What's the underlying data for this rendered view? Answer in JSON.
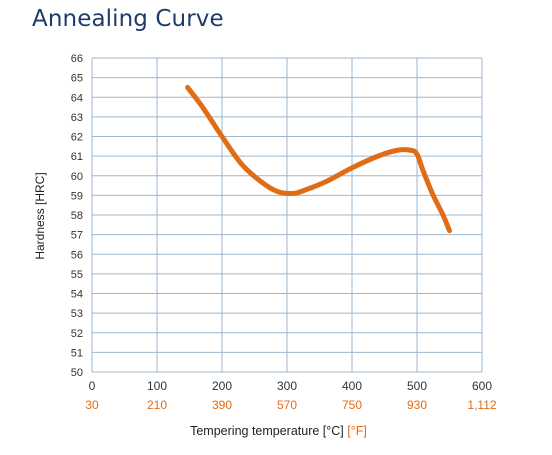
{
  "title": "Annealing Curve",
  "chart_data": {
    "type": "line",
    "title": "Annealing Curve",
    "ylabel": "Hardness [HRC]",
    "xlabel_c": "Tempering temperature [°C]",
    "xlabel_f": "[°F]",
    "xlim": [
      0,
      600
    ],
    "ylim": [
      50,
      66
    ],
    "x_ticks": [
      0,
      100,
      200,
      300,
      400,
      500,
      600
    ],
    "x_ticks_f": [
      "30",
      "210",
      "390",
      "570",
      "750",
      "930",
      "1,112"
    ],
    "y_ticks": [
      66,
      65,
      64,
      63,
      62,
      61,
      60,
      59,
      58,
      57,
      56,
      55,
      54,
      53,
      52,
      51,
      50
    ],
    "grid": true,
    "series": [
      {
        "color": "#e06c15",
        "x": [
          147,
          170,
          200,
          230,
          260,
          285,
          310,
          330,
          360,
          400,
          440,
          470,
          490,
          500,
          510,
          525,
          540,
          550
        ],
        "y": [
          64.5,
          63.5,
          62.0,
          60.6,
          59.7,
          59.2,
          59.1,
          59.3,
          59.7,
          60.4,
          61.0,
          61.3,
          61.3,
          61.1,
          60.2,
          59.0,
          58.0,
          57.2
        ]
      }
    ]
  }
}
